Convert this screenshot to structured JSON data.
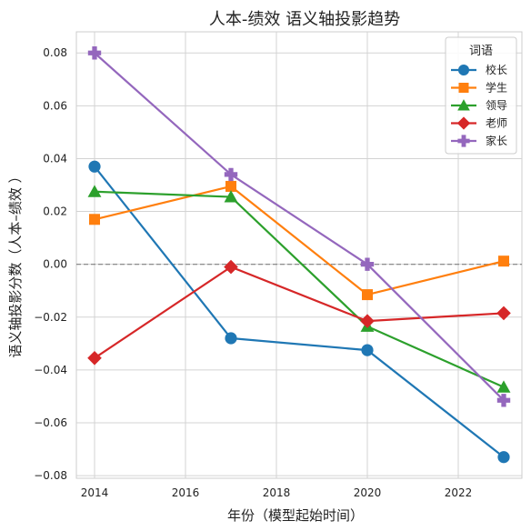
{
  "chart_data": {
    "type": "line",
    "title": "人本-绩效 语义轴投影趋势",
    "xlabel": "年份（模型起始时间）",
    "ylabel": "语义轴投影分数（人本–绩效 ）",
    "x": [
      2014,
      2017,
      2020,
      2023
    ],
    "xlim": [
      2013.6,
      2023.4
    ],
    "ylim": [
      -0.081,
      0.088
    ],
    "xticks": [
      "2014",
      "2016",
      "2018",
      "2020",
      "2022"
    ],
    "xtick_values": [
      2014,
      2016,
      2018,
      2020,
      2022
    ],
    "yticks": [
      "−0.08",
      "−0.06",
      "−0.04",
      "−0.02",
      "0.00",
      "0.02",
      "0.04",
      "0.06",
      "0.08"
    ],
    "ytick_values": [
      -0.08,
      -0.06,
      -0.04,
      -0.02,
      0.0,
      0.02,
      0.04,
      0.06,
      0.08
    ],
    "reference_line": 0.0,
    "grid": true,
    "legend": {
      "title": "词语",
      "placement": "top-right"
    },
    "series": [
      {
        "name": "校长",
        "color": "#1f77b4",
        "marker": "circle",
        "values": [
          0.037,
          -0.028,
          -0.0325,
          -0.073
        ]
      },
      {
        "name": "学生",
        "color": "#ff7f0e",
        "marker": "square",
        "values": [
          0.017,
          0.0295,
          -0.0115,
          0.0012
        ]
      },
      {
        "name": "领导",
        "color": "#2ca02c",
        "marker": "triangle",
        "values": [
          0.0275,
          0.0255,
          -0.0235,
          -0.0465
        ]
      },
      {
        "name": "老师",
        "color": "#d62728",
        "marker": "diamond",
        "values": [
          -0.0355,
          -0.001,
          -0.0215,
          -0.0185
        ]
      },
      {
        "name": "家长",
        "color": "#9467bd",
        "marker": "plus",
        "values": [
          0.08,
          0.034,
          0.0,
          -0.0515
        ]
      }
    ]
  }
}
